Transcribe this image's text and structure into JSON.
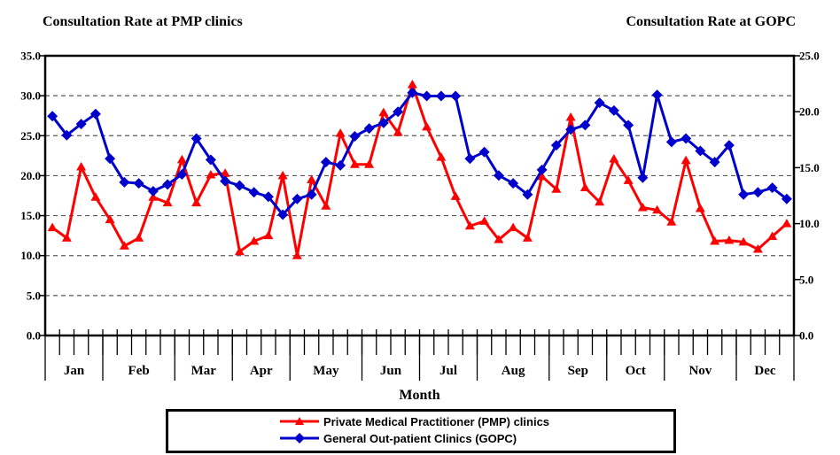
{
  "titles": {
    "left": "Consultation Rate at PMP clinics",
    "right": "Consultation Rate at GOPC"
  },
  "x_axis_title": "Month",
  "legend": {
    "entries": [
      {
        "label": "Private Medical Practitioner (PMP) clinics",
        "color": "#ff0000",
        "marker": "triangle"
      },
      {
        "label": "General Out-patient Clinics (GOPC)",
        "color": "#0000cc",
        "marker": "diamond"
      }
    ]
  },
  "chart_data": {
    "type": "line",
    "title_left": "Consultation Rate at PMP clinics",
    "title_right": "Consultation Rate at GOPC",
    "xlabel": "Month",
    "grid": "horizontal dashed gridlines at left-axis multiples of 5",
    "legend_position": "bottom",
    "axes": {
      "left": {
        "min": 0,
        "max": 35,
        "step": 5,
        "tick_labels": [
          "35.0",
          "30.0",
          "25.0",
          "20.0",
          "15.0",
          "10.0",
          "5.0",
          "0.0"
        ]
      },
      "right": {
        "min": 0,
        "max": 25,
        "step": 5,
        "tick_labels": [
          "25.0",
          "20.0",
          "15.0",
          "10.0",
          "5.0",
          "0.0"
        ]
      }
    },
    "months": [
      {
        "label": "Jan",
        "weeks": 4
      },
      {
        "label": "Feb",
        "weeks": 5
      },
      {
        "label": "Mar",
        "weeks": 4
      },
      {
        "label": "Apr",
        "weeks": 4
      },
      {
        "label": "May",
        "weeks": 5
      },
      {
        "label": "Jun",
        "weeks": 4
      },
      {
        "label": "Jul",
        "weeks": 4
      },
      {
        "label": "Aug",
        "weeks": 5
      },
      {
        "label": "Sep",
        "weeks": 4
      },
      {
        "label": "Oct",
        "weeks": 4
      },
      {
        "label": "Nov",
        "weeks": 5
      },
      {
        "label": "Dec",
        "weeks": 4
      }
    ],
    "x_unit": "week (52 weekly points)",
    "series": [
      {
        "name": "Private Medical Practitioner (PMP) clinics",
        "axis": "left",
        "color": "#ff0000",
        "marker": "triangle",
        "values": [
          13.5,
          12.2,
          21.1,
          17.3,
          14.5,
          11.2,
          12.2,
          17.3,
          16.6,
          22.0,
          16.6,
          20.1,
          20.3,
          10.5,
          11.8,
          12.5,
          20.0,
          10.0,
          19.5,
          16.2,
          25.3,
          21.4,
          21.4,
          27.9,
          25.4,
          31.4,
          26.1,
          22.3,
          17.4,
          13.7,
          14.3,
          12.0,
          13.5,
          12.2,
          19.9,
          18.3,
          27.3,
          18.5,
          16.7,
          22.1,
          19.4,
          16.0,
          15.7,
          14.2,
          21.9,
          15.9,
          11.8,
          11.9,
          11.7,
          10.8,
          12.4,
          14.0
        ]
      },
      {
        "name": "General Out-patient Clinics (GOPC)",
        "axis": "right",
        "color": "#0000cc",
        "marker": "diamond",
        "values": [
          19.6,
          17.9,
          18.9,
          19.8,
          15.8,
          13.7,
          13.6,
          12.9,
          13.5,
          14.4,
          17.6,
          15.7,
          13.8,
          13.4,
          12.8,
          12.4,
          10.8,
          12.2,
          12.6,
          15.5,
          15.2,
          17.8,
          18.5,
          19.0,
          20.0,
          21.7,
          21.4,
          21.4,
          21.4,
          15.8,
          16.4,
          14.3,
          13.6,
          12.6,
          14.8,
          17.0,
          18.4,
          18.8,
          20.8,
          20.1,
          18.8,
          14.1,
          21.5,
          17.3,
          17.6,
          16.5,
          15.5,
          17.0,
          12.6,
          12.8,
          13.2,
          12.2
        ]
      }
    ]
  }
}
